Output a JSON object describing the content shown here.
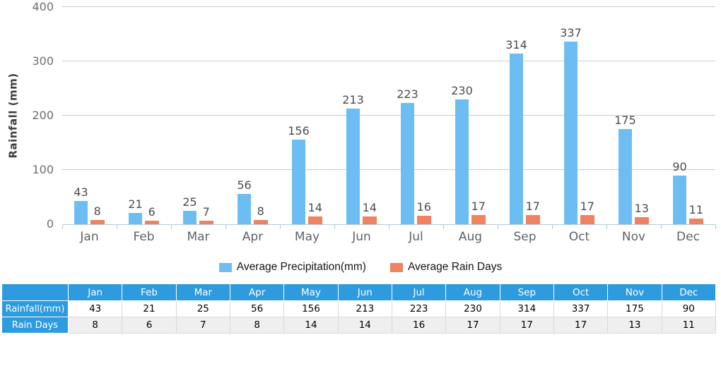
{
  "chart_data": {
    "type": "bar",
    "categories": [
      "Jan",
      "Feb",
      "Mar",
      "Apr",
      "May",
      "Jun",
      "Jul",
      "Aug",
      "Sep",
      "Oct",
      "Nov",
      "Dec"
    ],
    "series": [
      {
        "name": "Average Precipitation(mm)",
        "color": "#6CBEF2",
        "values": [
          43,
          21,
          25,
          56,
          156,
          213,
          223,
          230,
          314,
          337,
          175,
          90
        ]
      },
      {
        "name": "Average Rain Days",
        "color": "#F0825F",
        "values": [
          8,
          6,
          7,
          8,
          14,
          14,
          16,
          17,
          17,
          17,
          13,
          11
        ]
      }
    ],
    "ylabel": "Rainfall (mm)",
    "ylim": [
      0,
      400
    ],
    "yticks": [
      0,
      100,
      200,
      300,
      400
    ],
    "grid": true,
    "legend_position": "bottom"
  },
  "table": {
    "corner_label": "",
    "row_headers": [
      "Rainfall(mm)",
      "Rain Days"
    ]
  },
  "colors": {
    "precipitation_bar": "#6CBEF2",
    "rain_days_bar": "#F0825F",
    "table_header_bg": "#2E9BDF",
    "table_alt_row_bg": "#EFEFEF",
    "grid_line": "#CBCBCB",
    "axis_line": "#B5CBD9",
    "tick_label": "#6E6E6E",
    "value_label": "#4D4D4D"
  }
}
